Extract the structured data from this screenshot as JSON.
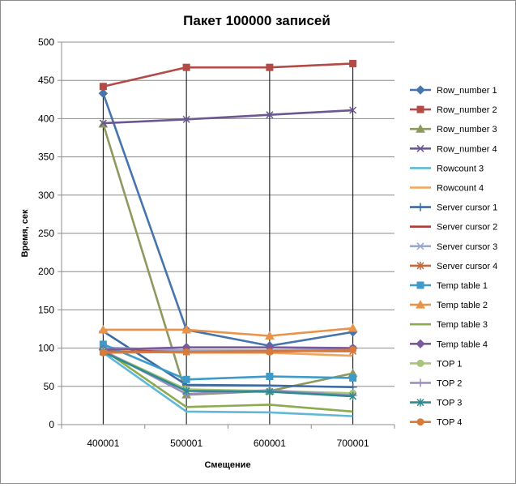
{
  "chart_data": {
    "type": "line",
    "title": "Пакет 100000 записей",
    "xlabel": "Смещение",
    "ylabel": "Время, сек",
    "categories": [
      "400001",
      "500001",
      "600001",
      "700001"
    ],
    "ylim": [
      0,
      500
    ],
    "yticks": [
      "0",
      "50",
      "100",
      "150",
      "200",
      "250",
      "300",
      "350",
      "400",
      "450",
      "500"
    ],
    "grid": "horizontal + vertical drop lines",
    "legend_position": "right",
    "series": [
      {
        "name": "Row_number 1",
        "values": [
          433,
          124,
          103,
          121
        ],
        "color": "#4674ac",
        "marker": "diamond"
      },
      {
        "name": "Row_number 2",
        "values": [
          442,
          467,
          467,
          472
        ],
        "color": "#b24a46",
        "marker": "square"
      },
      {
        "name": "Row_number 3",
        "values": [
          393,
          39,
          44,
          67
        ],
        "color": "#8c9a5f",
        "marker": "triangle"
      },
      {
        "name": "Row_number 4",
        "values": [
          394,
          399,
          405,
          411
        ],
        "color": "#6b5890",
        "marker": "x"
      },
      {
        "name": "Rowcount 3",
        "values": [
          94,
          17,
          16,
          11
        ],
        "color": "#60b8d6",
        "marker": "none"
      },
      {
        "name": "Rowcount 4",
        "values": [
          96,
          94,
          94,
          90
        ],
        "color": "#f0a55d",
        "marker": "none"
      },
      {
        "name": "Server cursor 1",
        "values": [
          122,
          52,
          51,
          49
        ],
        "color": "#3d6aa3",
        "marker": "plus"
      },
      {
        "name": "Server cursor 2",
        "values": [
          100,
          96,
          96,
          97
        ],
        "color": "#b23a38",
        "marker": "none"
      },
      {
        "name": "Server cursor 3",
        "values": [
          101,
          97,
          97,
          99
        ],
        "color": "#9aa8cc",
        "marker": "x"
      },
      {
        "name": "Server cursor 4",
        "values": [
          96,
          95,
          96,
          96
        ],
        "color": "#c06a3e",
        "marker": "star"
      },
      {
        "name": "Temp table 1",
        "values": [
          105,
          59,
          63,
          61
        ],
        "color": "#3e9bc7",
        "marker": "square"
      },
      {
        "name": "Temp table 2",
        "values": [
          124,
          124,
          116,
          126
        ],
        "color": "#e8924a",
        "marker": "triangle"
      },
      {
        "name": "Temp table 3",
        "values": [
          98,
          23,
          26,
          17
        ],
        "color": "#8aab4e",
        "marker": "none"
      },
      {
        "name": "Temp table 4",
        "values": [
          98,
          101,
          101,
          100
        ],
        "color": "#7a5a9c",
        "marker": "diamond"
      },
      {
        "name": "TOP 1",
        "values": [
          96,
          46,
          44,
          41
        ],
        "color": "#a8c47a",
        "marker": "circle"
      },
      {
        "name": "TOP 2",
        "values": [
          97,
          40,
          45,
          38
        ],
        "color": "#9a8cbe",
        "marker": "plus"
      },
      {
        "name": "TOP 3",
        "values": [
          95,
          44,
          43,
          37
        ],
        "color": "#2f8b92",
        "marker": "star"
      },
      {
        "name": "TOP 4",
        "values": [
          94,
          95,
          95,
          98
        ],
        "color": "#d97a3a",
        "marker": "circle"
      }
    ]
  }
}
